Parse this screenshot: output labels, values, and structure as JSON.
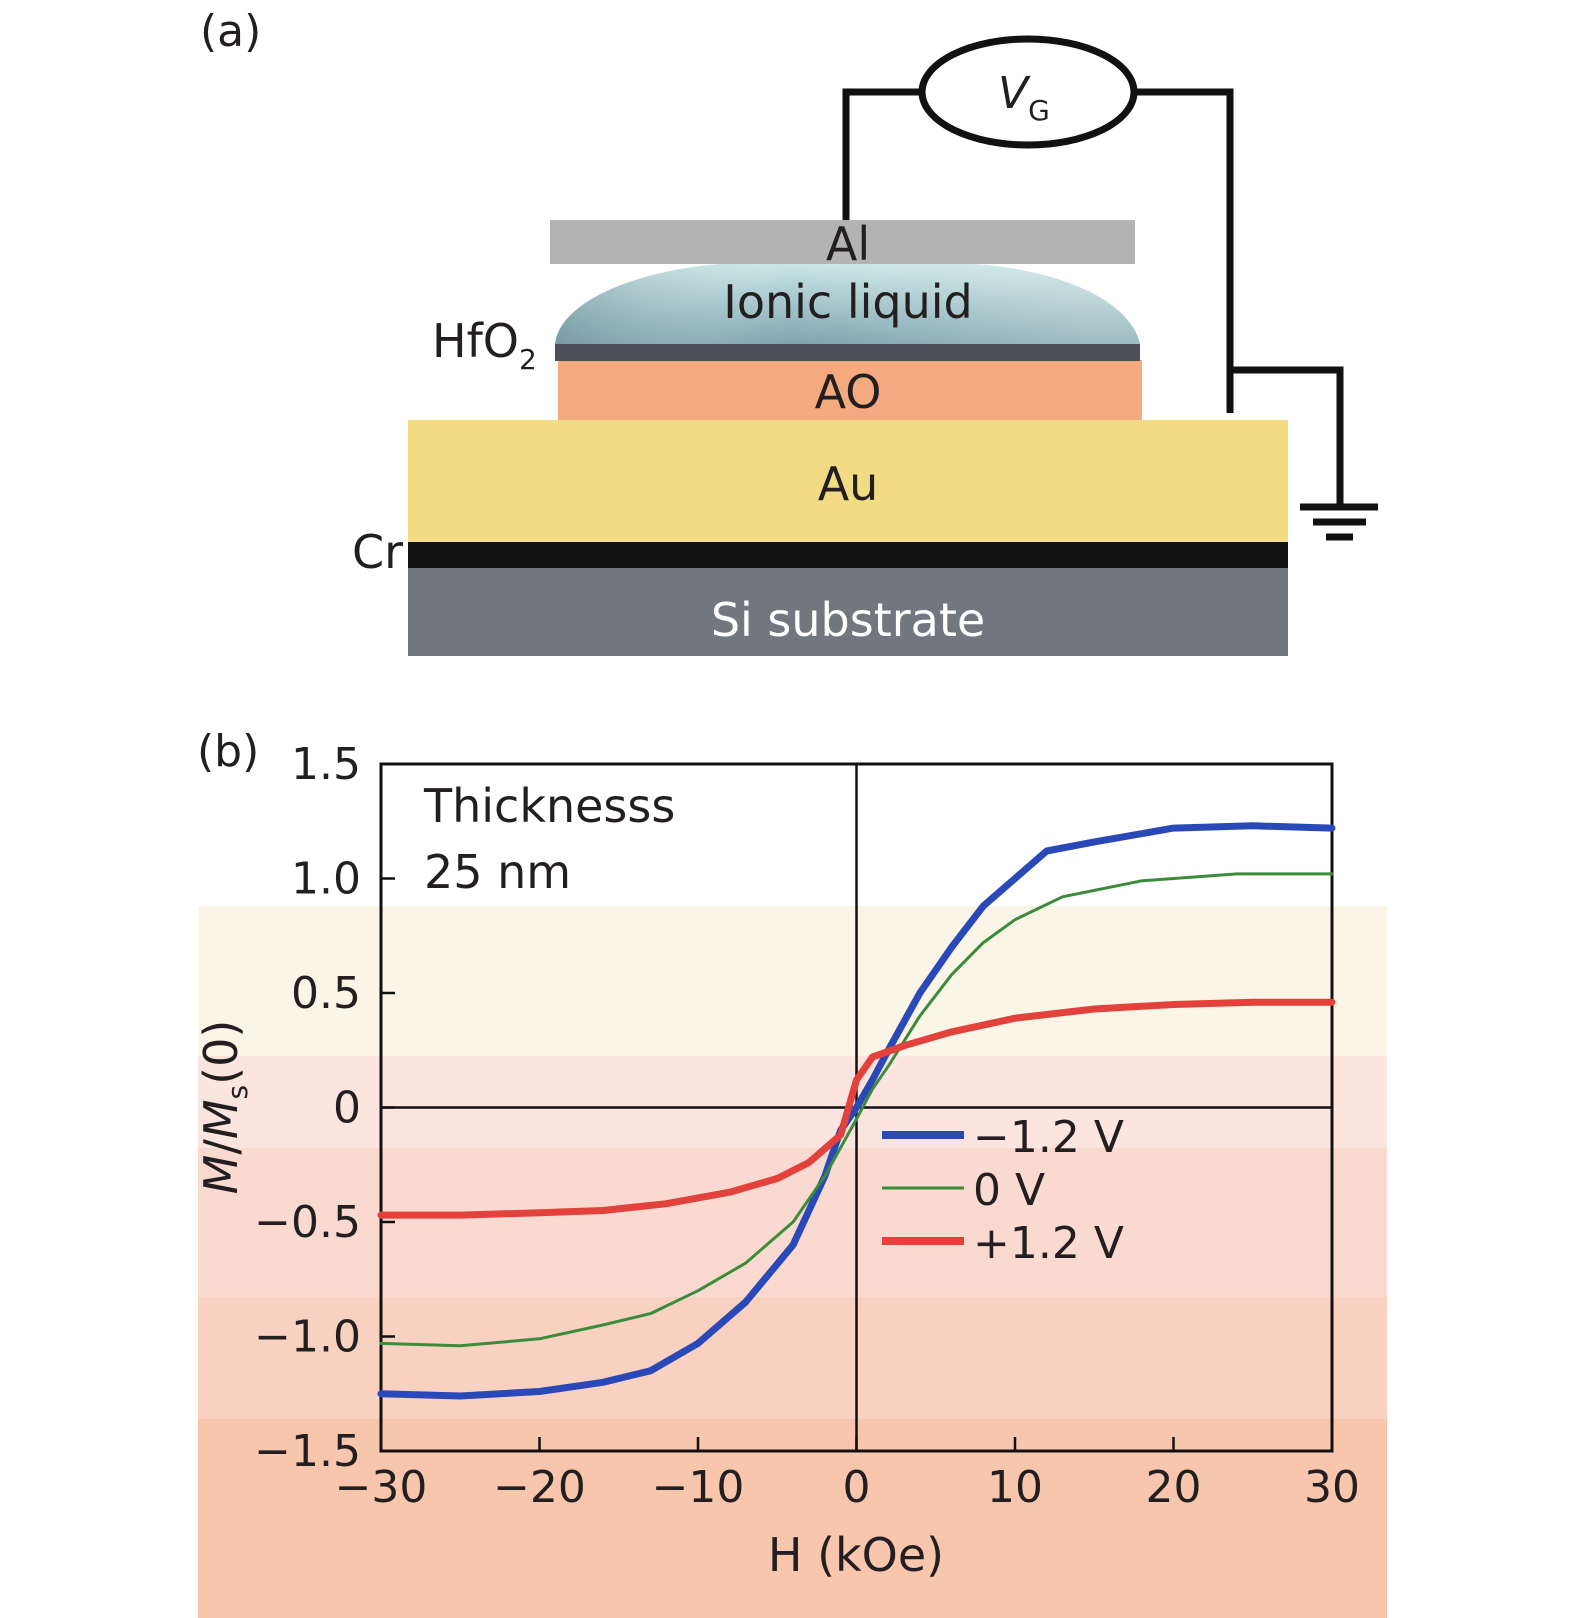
{
  "panel_a": {
    "label": "(a)",
    "vg_symbol": "V",
    "vg_subscript": "G",
    "layers": {
      "al": "Al",
      "ionic_liquid": "Ionic liquid",
      "hfo2_main": "HfO",
      "hfo2_sub": "2",
      "ao": "AO",
      "au": "Au",
      "cr": "Cr",
      "si": "Si substrate"
    },
    "colors": {
      "al": "#b3b3b3",
      "ionic_liquid_top": "#c8e4e6",
      "ionic_liquid_bottom": "#7fa6ae",
      "hfo2": "#4d4f58",
      "ao": "#f4aa7e",
      "au": "#f2db83",
      "cr": "#111111",
      "si": "#72767e"
    }
  },
  "panel_b": {
    "label": "(b)",
    "annotation_line1": "Thicknesss",
    "annotation_line2": "25 nm",
    "legend": [
      {
        "label": "−1.2 V",
        "color": "#2a49b8"
      },
      {
        "label": "0 V",
        "color": "#3a8c3a"
      },
      {
        "label": "+1.2 V",
        "color": "#e3413c"
      }
    ]
  },
  "chart_data": {
    "type": "line",
    "title": "",
    "xlabel": "H (kOe)",
    "ylabel_parts": {
      "m": "M",
      "slash": "/",
      "ms": "M",
      "s": "s",
      "zero": "(0)"
    },
    "xlim": [
      -30,
      30
    ],
    "ylim": [
      -1.5,
      1.5
    ],
    "x_ticks": [
      -30,
      -20,
      -10,
      0,
      10,
      20,
      30
    ],
    "x_tick_labels": [
      "−30",
      "−20",
      "−10",
      "0",
      "10",
      "20",
      "30"
    ],
    "y_ticks": [
      1.5,
      1.0,
      0.5,
      0,
      -0.5,
      -1.0,
      -1.5
    ],
    "y_tick_labels": [
      "1.5",
      "1.0",
      "0.5",
      "0",
      "−0.5",
      "−1.0",
      "−1.5"
    ],
    "zero_lines": true,
    "grid": false,
    "legend_position": "center-right",
    "series": [
      {
        "name": "−1.2 V",
        "color": "#2a49b8",
        "points": [
          [
            -30,
            -1.25
          ],
          [
            -25,
            -1.26
          ],
          [
            -20,
            -1.24
          ],
          [
            -16,
            -1.2
          ],
          [
            -13,
            -1.15
          ],
          [
            -10,
            -1.03
          ],
          [
            -7,
            -0.85
          ],
          [
            -4,
            -0.6
          ],
          [
            -2,
            -0.3
          ],
          [
            -1,
            -0.1
          ],
          [
            0,
            0
          ],
          [
            1,
            0.12
          ],
          [
            2,
            0.25
          ],
          [
            4,
            0.5
          ],
          [
            6,
            0.7
          ],
          [
            8,
            0.88
          ],
          [
            10,
            1.0
          ],
          [
            12,
            1.12
          ],
          [
            15,
            1.16
          ],
          [
            20,
            1.22
          ],
          [
            25,
            1.23
          ],
          [
            30,
            1.22
          ]
        ]
      },
      {
        "name": "0 V",
        "color": "#3a8c3a",
        "points": [
          [
            -30,
            -1.03
          ],
          [
            -25,
            -1.04
          ],
          [
            -20,
            -1.01
          ],
          [
            -16,
            -0.95
          ],
          [
            -13,
            -0.9
          ],
          [
            -10,
            -0.8
          ],
          [
            -7,
            -0.68
          ],
          [
            -4,
            -0.5
          ],
          [
            -2,
            -0.3
          ],
          [
            0,
            -0.05
          ],
          [
            1,
            0.08
          ],
          [
            2,
            0.18
          ],
          [
            4,
            0.4
          ],
          [
            6,
            0.58
          ],
          [
            8,
            0.72
          ],
          [
            10,
            0.82
          ],
          [
            13,
            0.92
          ],
          [
            18,
            0.99
          ],
          [
            24,
            1.02
          ],
          [
            30,
            1.02
          ]
        ]
      },
      {
        "name": "+1.2 V",
        "color": "#e3413c",
        "points": [
          [
            -30,
            -0.47
          ],
          [
            -25,
            -0.47
          ],
          [
            -20,
            -0.46
          ],
          [
            -16,
            -0.45
          ],
          [
            -12,
            -0.42
          ],
          [
            -8,
            -0.37
          ],
          [
            -5,
            -0.31
          ],
          [
            -3,
            -0.24
          ],
          [
            -1,
            -0.12
          ],
          [
            0,
            0.12
          ],
          [
            1,
            0.22
          ],
          [
            3,
            0.27
          ],
          [
            6,
            0.33
          ],
          [
            10,
            0.39
          ],
          [
            15,
            0.43
          ],
          [
            20,
            0.45
          ],
          [
            25,
            0.46
          ],
          [
            30,
            0.46
          ]
        ]
      }
    ]
  }
}
